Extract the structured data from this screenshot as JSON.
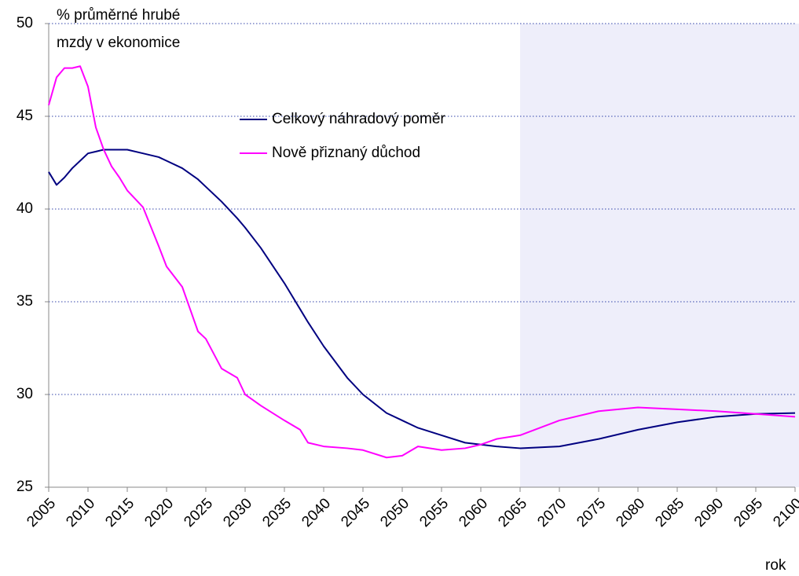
{
  "chart_data": {
    "type": "line",
    "y_label": [
      "% průměrné hrubé",
      "mzdy v ekonomice"
    ],
    "x_label": "rok",
    "x": [
      2005,
      2006,
      2007,
      2008,
      2009,
      2010,
      2011,
      2012,
      2013,
      2014,
      2015,
      2017,
      2019,
      2020,
      2022,
      2024,
      2025,
      2027,
      2029,
      2030,
      2032,
      2035,
      2037,
      2038,
      2040,
      2043,
      2045,
      2048,
      2050,
      2052,
      2055,
      2058,
      2060,
      2062,
      2065,
      2070,
      2075,
      2080,
      2085,
      2090,
      2095,
      2100
    ],
    "series": [
      {
        "name": "Celkový náhradový poměr",
        "color": "#000080",
        "values": [
          42.0,
          41.3,
          41.7,
          42.2,
          42.6,
          43.0,
          43.1,
          43.2,
          43.2,
          43.2,
          43.2,
          43.0,
          42.8,
          42.6,
          42.2,
          41.6,
          41.2,
          40.4,
          39.5,
          39.0,
          37.9,
          36.0,
          34.6,
          33.9,
          32.6,
          30.9,
          30.0,
          29.0,
          28.6,
          28.2,
          27.8,
          27.4,
          27.3,
          27.2,
          27.1,
          27.2,
          27.6,
          28.1,
          28.5,
          28.8,
          28.95,
          29.0
        ]
      },
      {
        "name": "Nově přiznaný důchod",
        "color": "#ff00ff",
        "values": [
          45.6,
          47.1,
          47.6,
          47.6,
          47.7,
          46.6,
          44.4,
          43.2,
          42.3,
          41.7,
          41.0,
          40.1,
          38.0,
          36.9,
          35.8,
          33.4,
          33.0,
          31.4,
          30.9,
          30.0,
          29.4,
          28.6,
          28.1,
          27.4,
          27.2,
          27.1,
          27.0,
          26.6,
          26.7,
          27.2,
          27.0,
          27.1,
          27.3,
          27.6,
          27.8,
          28.6,
          29.1,
          29.3,
          29.2,
          29.1,
          28.95,
          28.8
        ]
      }
    ],
    "xlim": [
      2005,
      2100
    ],
    "xticks": [
      2005,
      2010,
      2015,
      2020,
      2025,
      2030,
      2035,
      2040,
      2045,
      2050,
      2055,
      2060,
      2065,
      2070,
      2075,
      2080,
      2085,
      2090,
      2095,
      2100
    ],
    "ylim": [
      25,
      50
    ],
    "yticks": [
      25,
      30,
      35,
      40,
      45,
      50
    ],
    "grid": true,
    "shaded_range": [
      2065,
      2100
    ],
    "shade_color": "#eeeefa"
  }
}
